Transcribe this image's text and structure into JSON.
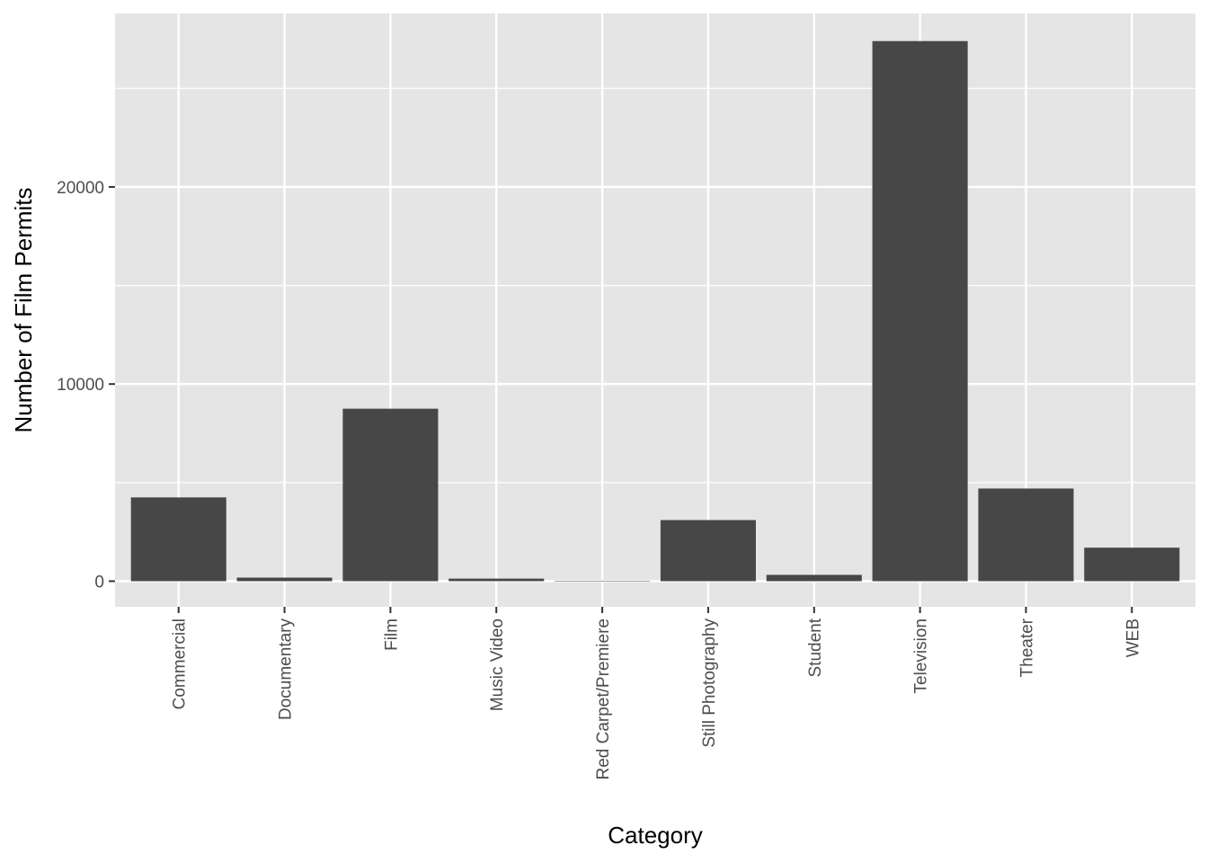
{
  "chart_data": {
    "type": "bar",
    "title": "",
    "xlabel": "Category",
    "ylabel": "Number of Film Permits",
    "categories": [
      "Commercial",
      "Documentary",
      "Film",
      "Music Video",
      "Red Carpet/Premiere",
      "Still Photography",
      "Student",
      "Television",
      "Theater",
      "WEB"
    ],
    "values": [
      4250,
      180,
      8750,
      130,
      20,
      3100,
      320,
      27400,
      4700,
      1700
    ],
    "ylim": [
      -1300,
      28800
    ],
    "yticks": [
      0,
      10000,
      20000
    ],
    "ytick_labels": [
      "0",
      "10000",
      "20000"
    ],
    "grid": true,
    "legend": "none",
    "colors": {
      "panel_background": "#e5e5e5",
      "grid": "#ffffff",
      "bar": "#474747",
      "tick_text": "#4d4d4d",
      "tick_mark": "#333333",
      "axis_title": "#000000"
    }
  }
}
